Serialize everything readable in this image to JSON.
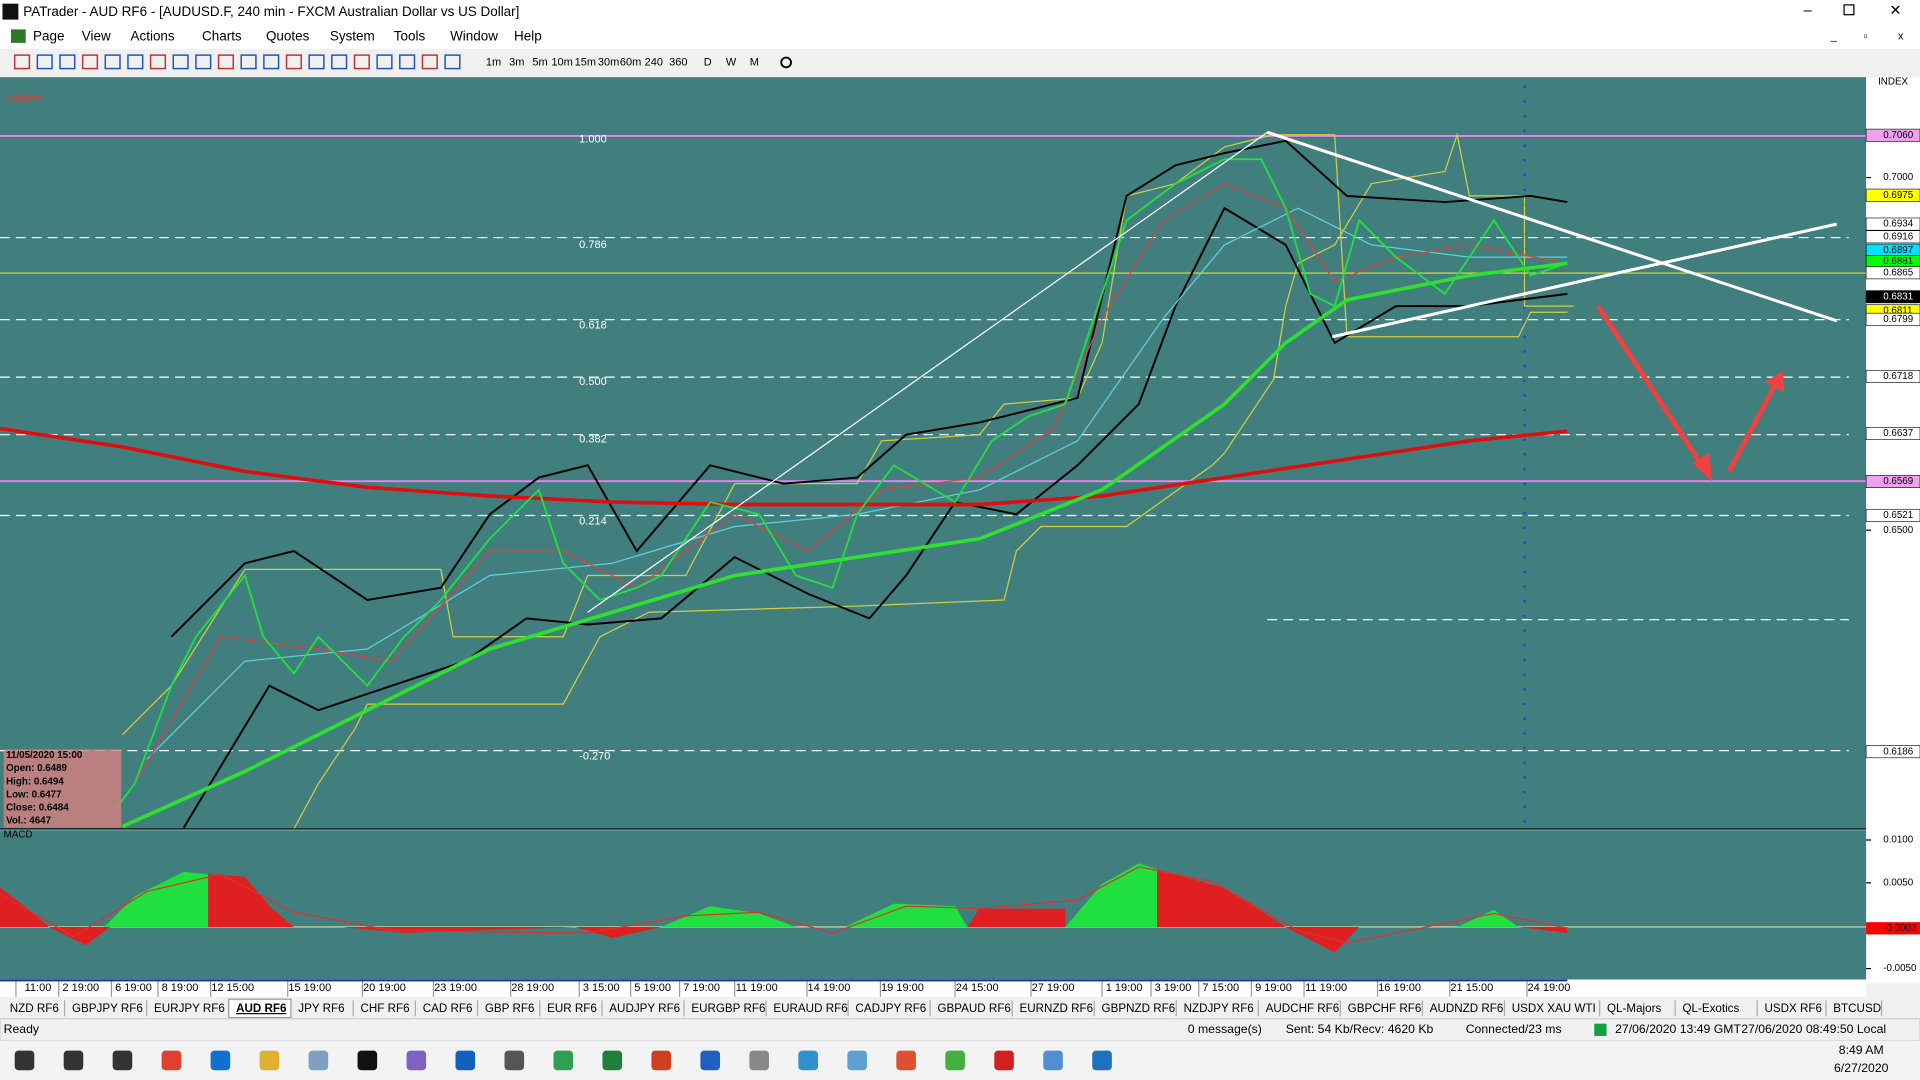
{
  "window": {
    "title": "PATrader - AUD RF6 - [AUDUSD.F, 240 min - FXCM Australian Dollar vs US Dollar]"
  },
  "menu": [
    "Page",
    "View",
    "Actions",
    "Charts",
    "Quotes",
    "System",
    "Tools",
    "Window",
    "Help"
  ],
  "timeframes": [
    "1m",
    "3m",
    "5m",
    "10m",
    "15m",
    "30m",
    "60m",
    "240",
    "360",
    "D",
    "W",
    "M"
  ],
  "chart": {
    "locked": "Locked",
    "index_label": "INDEX",
    "price_axis": [
      {
        "value": 0.706,
        "label": "0.7060",
        "highlight": "#f0a0f0"
      },
      {
        "value": 0.7,
        "label": "0.7000"
      },
      {
        "value": 0.6975,
        "label": "0.6975",
        "highlight": "#ffff00"
      },
      {
        "value": 0.6934,
        "label": "0.6934",
        "highlight": "#ffffff"
      },
      {
        "value": 0.6916,
        "label": "0.6916",
        "highlight": "#ffffff"
      },
      {
        "value": 0.6897,
        "label": "0.6897",
        "highlight": "#00e0ff"
      },
      {
        "value": 0.6881,
        "label": "0.6881",
        "highlight": "#00ff00"
      },
      {
        "value": 0.6865,
        "label": "0.6865",
        "highlight": "#ffffff"
      },
      {
        "value": 0.6831,
        "label": "0.6831",
        "highlight": "#000000"
      },
      {
        "value": 0.6811,
        "label": "0.6811",
        "highlight": "#ffff00"
      },
      {
        "value": 0.6799,
        "label": "0.6799",
        "highlight": "#ffffff"
      },
      {
        "value": 0.6718,
        "label": "0.6718",
        "highlight": "#ffffff"
      },
      {
        "value": 0.6637,
        "label": "0.6637",
        "highlight": "#ffffff"
      },
      {
        "value": 0.6569,
        "label": "0.6569",
        "highlight": "#f0a0f0"
      },
      {
        "value": 0.6521,
        "label": "0.6521",
        "highlight": "#ffffff"
      },
      {
        "value": 0.65,
        "label": "0.6500"
      },
      {
        "value": 0.6186,
        "label": "0.6186",
        "highlight": "#ffffff"
      }
    ],
    "fib_levels": [
      "1.000",
      "0.786",
      "0.618",
      "0.500",
      "0.382",
      "0.214",
      "-0.270"
    ],
    "info_box": [
      "11/05/2020 15:00",
      "Open: 0.6489",
      "High: 0.6494",
      "Low: 0.6477",
      "Close: 0.6484",
      "Vol.: 4647"
    ],
    "macd_label": "MACD",
    "macd_axis": [
      {
        "value": 0.01,
        "label": "0.0100"
      },
      {
        "value": 0.005,
        "label": "0.0050"
      },
      {
        "value": -0.0003,
        "label": "-0.0003",
        "highlight": "#ff0000"
      },
      {
        "value": -0.005,
        "label": "-0.0050"
      }
    ],
    "time_axis": [
      "11:00",
      "2 19:00",
      "6 19:00",
      "8 19:00",
      "12 15:00",
      "15 19:00",
      "20 19:00",
      "23 19:00",
      "28 19:00",
      "3 15:00",
      "5 19:00",
      "7 19:00",
      "11 19:00",
      "14 19:00",
      "19 19:00",
      "24 15:00",
      "27 19:00",
      "1 19:00",
      "3 19:00",
      "7 15:00",
      "9 19:00",
      "11 19:00",
      "16 19:00",
      "21 15:00",
      "24 19:00"
    ]
  },
  "tabs": [
    "NZD RF6",
    "GBPJPY RF6",
    "EURJPY RF6",
    "AUD RF6",
    "JPY RF6",
    "CHF RF6",
    "CAD RF6",
    "GBP RF6",
    "EUR RF6",
    "AUDJPY RF6",
    "EURGBP RF6",
    "EURAUD RF6",
    "CADJPY RF6",
    "GBPAUD RF6",
    "EURNZD RF6",
    "GBPNZD RF6",
    "NZDJPY RF6",
    "AUDCHF RF6",
    "GBPCHF RF6",
    "AUDNZD RF6",
    "USDX XAU WTI",
    "QL-Majors",
    "QL-Exotics",
    "USDX RF6",
    "BTCUSD"
  ],
  "status": {
    "ready": "Ready",
    "messages": "0 message(s)",
    "traffic": "Sent: 54 Kb/Recv: 4620 Kb",
    "connection": "Connected/23 ms",
    "gmt": "27/06/2020 13:49 GMT",
    "local": "27/06/2020 08:49:50 Local"
  },
  "taskbar": {
    "time": "8:49 AM",
    "date": "6/27/2020"
  }
}
